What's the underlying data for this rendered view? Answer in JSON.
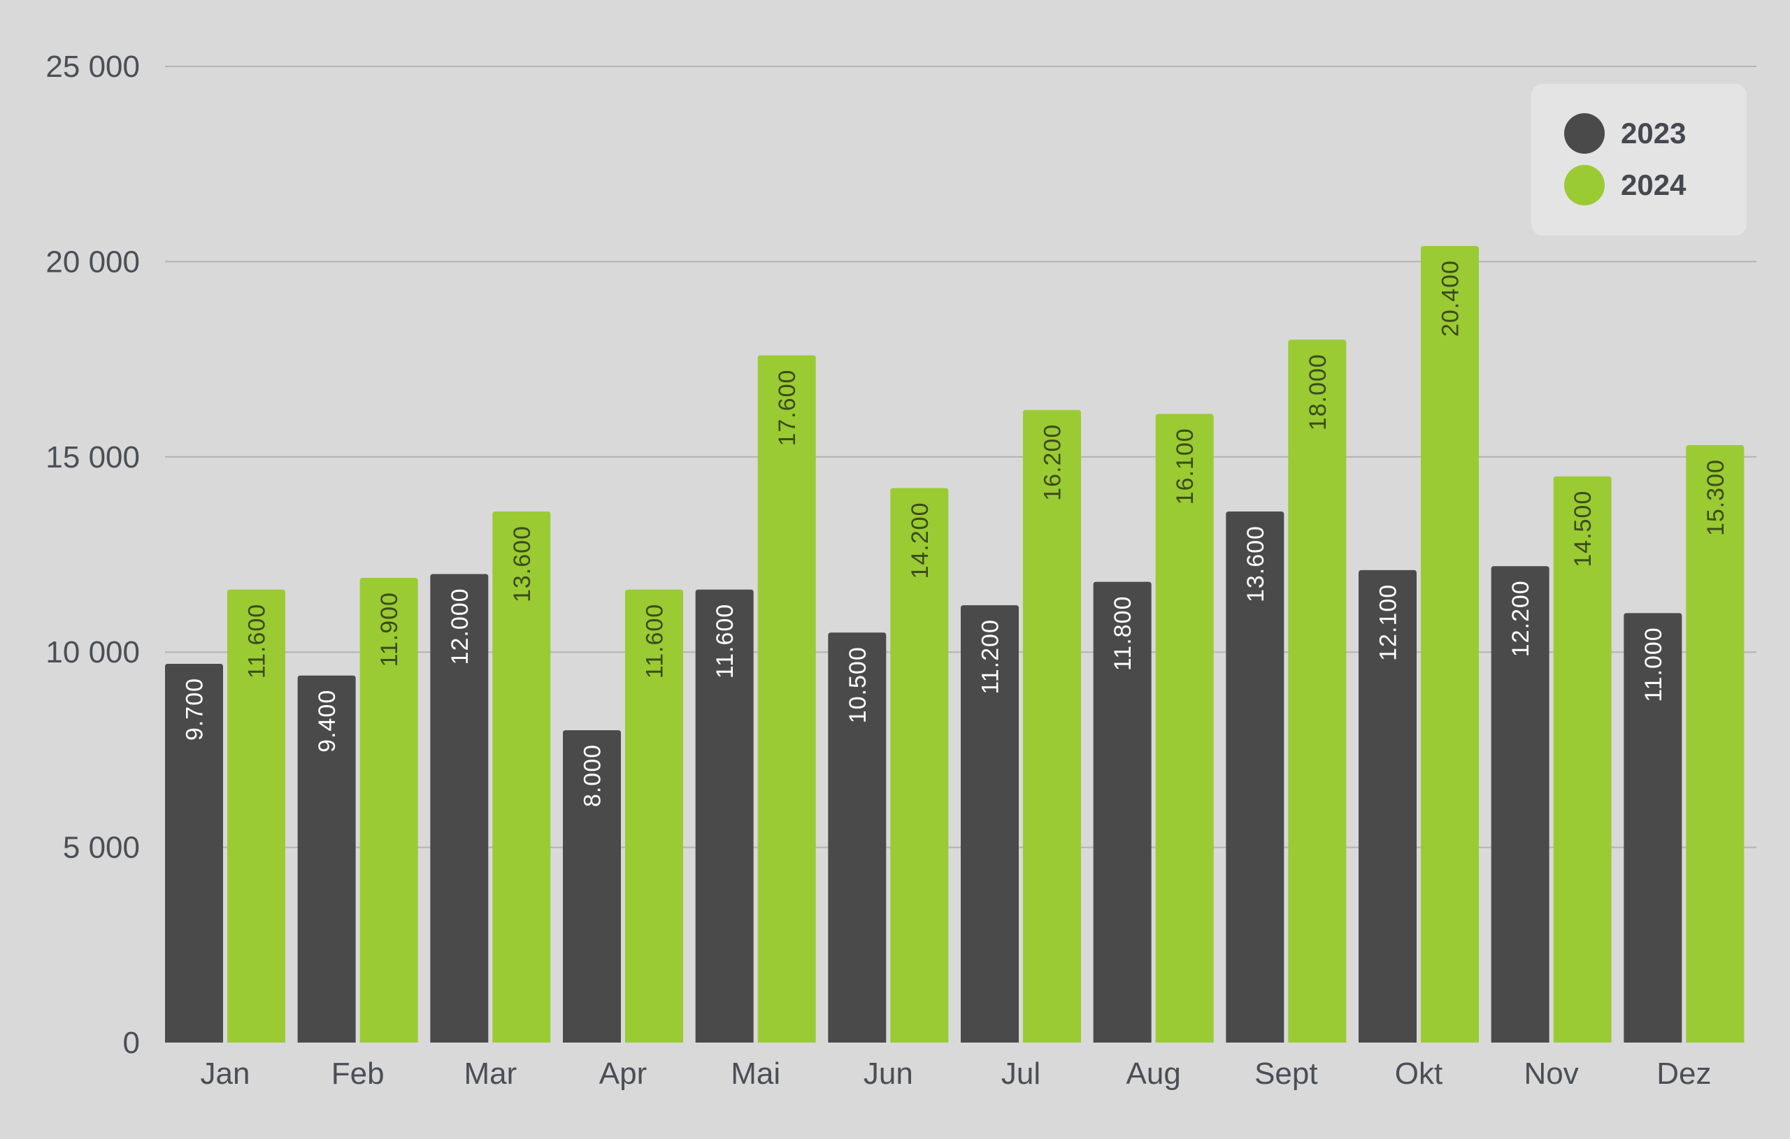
{
  "colors": {
    "background": "#d9d9d9",
    "gridline": "#b3b3b3",
    "series_2023": "#4a4a4a",
    "series_2024": "#9acb33",
    "label_on_2023": "#ffffff",
    "label_on_2024": "#3d4a1c",
    "legend_bg": "#e4e4e4",
    "axis_text": "#4a4f57"
  },
  "chart_data": {
    "type": "bar",
    "categories": [
      "Jan",
      "Feb",
      "Mar",
      "Apr",
      "Mai",
      "Jun",
      "Jul",
      "Aug",
      "Sept",
      "Okt",
      "Nov",
      "Dez"
    ],
    "series": [
      {
        "name": "2023",
        "values": [
          9700,
          9400,
          12000,
          8000,
          11600,
          10500,
          11200,
          11800,
          13600,
          12100,
          12200,
          11000
        ],
        "labels": [
          "9.700",
          "9.400",
          "12.000",
          "8.000",
          "11.600",
          "10.500",
          "11.200",
          "11.800",
          "13.600",
          "12.100",
          "12.200",
          "11.000"
        ]
      },
      {
        "name": "2024",
        "values": [
          11600,
          11900,
          13600,
          11600,
          17600,
          14200,
          16200,
          16100,
          18000,
          20400,
          14500,
          15300
        ],
        "labels": [
          "11.600",
          "11.900",
          "13.600",
          "11.600",
          "17.600",
          "14.200",
          "16.200",
          "16.100",
          "18.000",
          "20.400",
          "14.500",
          "15.300"
        ]
      }
    ],
    "y_ticks": [
      0,
      5000,
      10000,
      15000,
      20000,
      25000
    ],
    "y_tick_labels": [
      "0",
      "5 000",
      "10 000",
      "15 000",
      "20 000",
      "25 000"
    ],
    "ylim": [
      0,
      25000
    ],
    "title": "",
    "xlabel": "",
    "ylabel": "",
    "grid": true,
    "legend_position": "top-right"
  }
}
